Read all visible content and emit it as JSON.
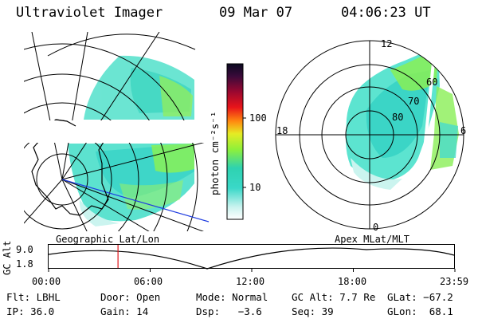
{
  "header": {
    "instrument": "Ultraviolet Imager",
    "date": "09 Mar 07",
    "time": "04:06:23 UT"
  },
  "colorbar": {
    "unit_label": "photon cm⁻²s⁻¹",
    "ticks": [
      "100",
      "10"
    ]
  },
  "left_panel": {
    "caption": "Geographic Lat/Lon"
  },
  "right_panel": {
    "caption": "Apex MLat/MLT",
    "mlt_labels": {
      "top": "12",
      "bottom": "0",
      "left": "18",
      "right": "6"
    },
    "lat_labels": [
      "60",
      "70",
      "80"
    ]
  },
  "timeline": {
    "ylabel": "GC Alt",
    "ymax": "9.0",
    "ymin": "1.8",
    "ticks": [
      "00:00",
      "06:00",
      "12:00",
      "18:00",
      "23:59"
    ],
    "current_hour": 4.1
  },
  "info": {
    "row1": [
      {
        "label": "Flt:",
        "value": "LBHL"
      },
      {
        "label": "Door:",
        "value": "Open"
      },
      {
        "label": "Mode:",
        "value": "Normal"
      },
      {
        "label": "GC Alt:",
        "value": "7.7 Re"
      },
      {
        "label": "GLat:",
        "value": "−67.2"
      }
    ],
    "row2": [
      {
        "label": "IP:",
        "value": "36.0"
      },
      {
        "label": "Gain:",
        "value": "14"
      },
      {
        "label": "Dsp:",
        "value": "  −3.6"
      },
      {
        "label": "Seq:",
        "value": "39"
      },
      {
        "label": "GLon:",
        "value": " 68.1"
      }
    ]
  },
  "colors": {
    "aurora_cyan": "#27e0c8",
    "aurora_green": "#6cf23a",
    "aurora_light": "#b8f4ec",
    "marker_red": "#e0161c",
    "lon_line_blue": "#1f3ce0"
  }
}
